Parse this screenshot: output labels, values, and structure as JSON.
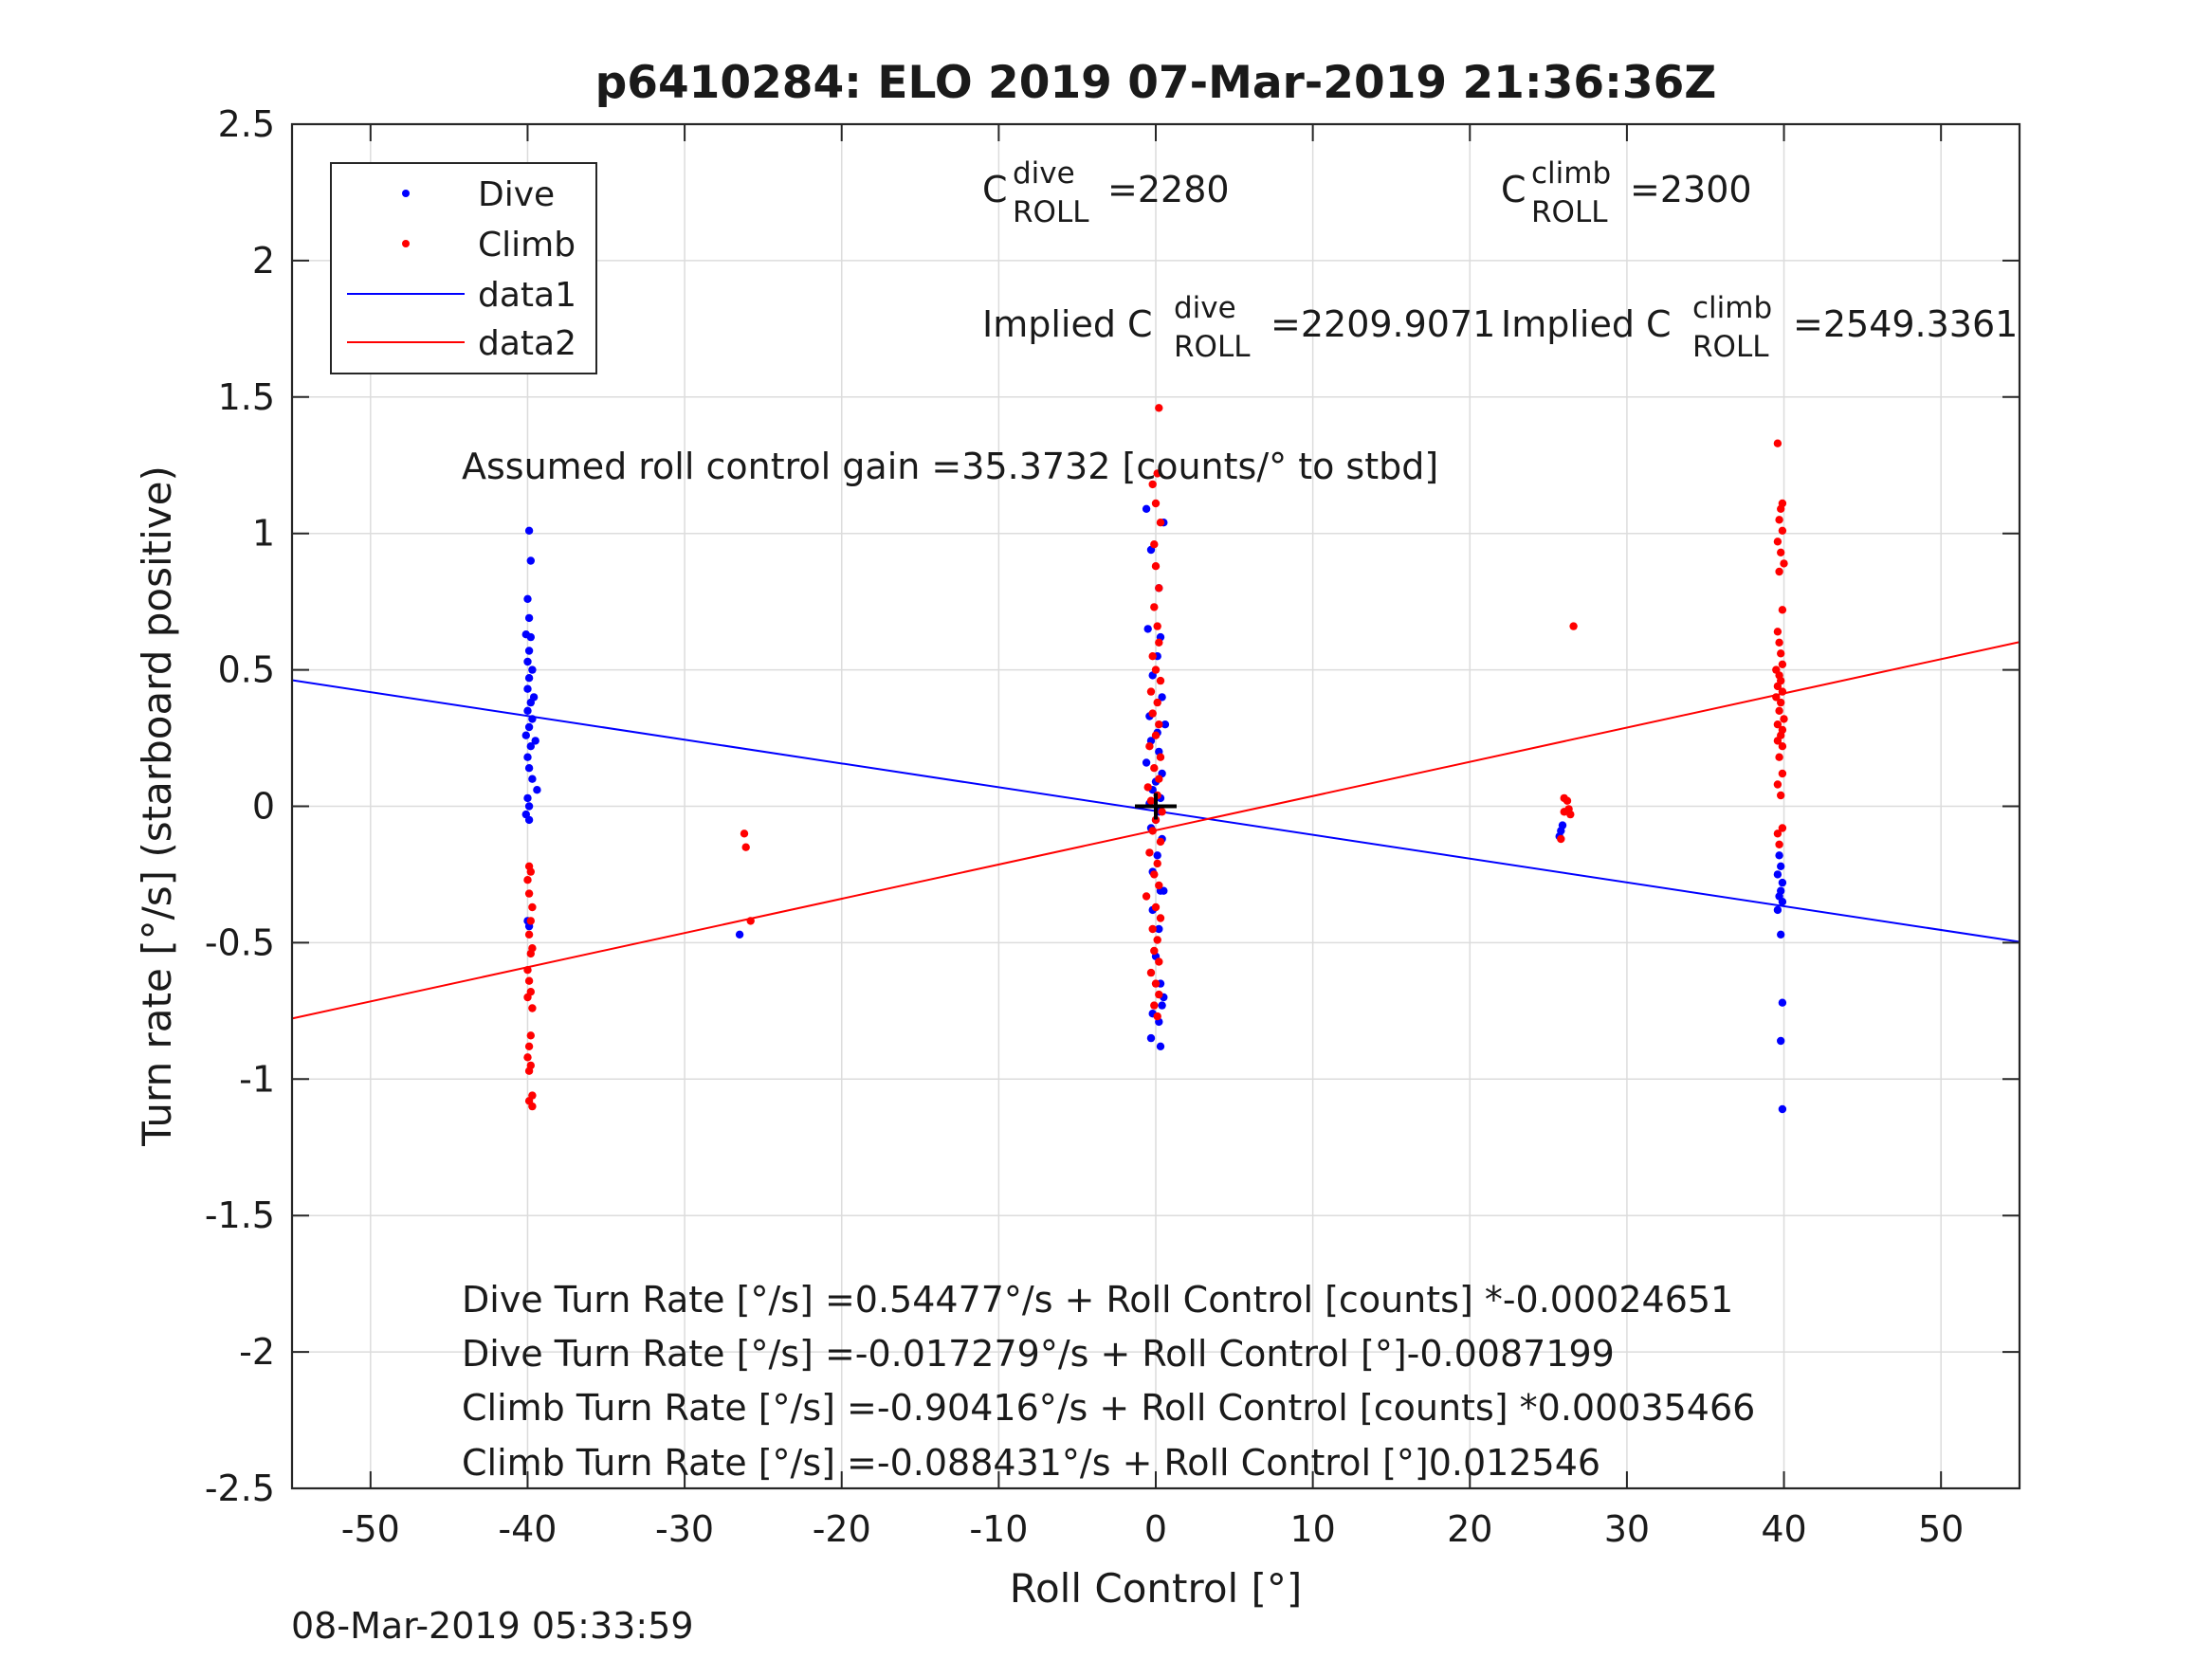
{
  "chart_data": {
    "type": "scatter",
    "title": "p6410284: ELO 2019 07-Mar-2019 21:36:36Z",
    "xlabel": "Roll Control [°]",
    "ylabel": "Turn rate [°/s] (starboard positive)",
    "xlim": [
      -55,
      55
    ],
    "ylim": [
      -2.5,
      2.5
    ],
    "grid": true,
    "x_ticks": [
      "-50",
      "-40",
      "-30",
      "-20",
      "-10",
      "0",
      "10",
      "20",
      "30",
      "40",
      "50"
    ],
    "y_ticks": [
      "2.5",
      "2",
      "1.5",
      "1",
      "0.5",
      "0",
      "-0.5",
      "-1",
      "-1.5",
      "-2",
      "-2.5"
    ],
    "legend": {
      "placement": "top-left",
      "entries": [
        "Dive",
        "Climb",
        "data1",
        "data2"
      ]
    },
    "colors": {
      "dive": "#0000ff",
      "climb": "#ff0000",
      "center_marker": "#000000"
    },
    "series": [
      {
        "name": "Dive",
        "style": "points",
        "points": [
          [
            -39.9,
            1.01
          ],
          [
            -39.8,
            0.9
          ],
          [
            -40.0,
            0.76
          ],
          [
            -39.9,
            0.69
          ],
          [
            -40.1,
            0.63
          ],
          [
            -39.8,
            0.62
          ],
          [
            -39.9,
            0.57
          ],
          [
            -40.0,
            0.53
          ],
          [
            -39.7,
            0.5
          ],
          [
            -39.9,
            0.47
          ],
          [
            -40.0,
            0.43
          ],
          [
            -39.6,
            0.4
          ],
          [
            -39.8,
            0.38
          ],
          [
            -40.0,
            0.35
          ],
          [
            -39.7,
            0.32
          ],
          [
            -39.9,
            0.29
          ],
          [
            -40.1,
            0.26
          ],
          [
            -39.5,
            0.24
          ],
          [
            -39.8,
            0.22
          ],
          [
            -40.0,
            0.18
          ],
          [
            -39.9,
            0.14
          ],
          [
            -39.7,
            0.1
          ],
          [
            -39.4,
            0.06
          ],
          [
            -40.0,
            0.03
          ],
          [
            -39.9,
            0.0
          ],
          [
            -40.1,
            -0.03
          ],
          [
            -39.9,
            -0.05
          ],
          [
            -40.0,
            -0.42
          ],
          [
            -39.9,
            -0.44
          ],
          [
            -26.5,
            -0.47
          ],
          [
            -0.6,
            1.09
          ],
          [
            0.5,
            1.04
          ],
          [
            -0.3,
            0.94
          ],
          [
            0.2,
            0.8
          ],
          [
            -0.5,
            0.65
          ],
          [
            0.3,
            0.62
          ],
          [
            0.1,
            0.55
          ],
          [
            -0.2,
            0.48
          ],
          [
            0.4,
            0.4
          ],
          [
            -0.4,
            0.33
          ],
          [
            0.6,
            0.3
          ],
          [
            0.1,
            0.27
          ],
          [
            -0.3,
            0.24
          ],
          [
            0.2,
            0.2
          ],
          [
            -0.6,
            0.16
          ],
          [
            0.4,
            0.12
          ],
          [
            0.0,
            0.09
          ],
          [
            -0.2,
            0.06
          ],
          [
            0.3,
            0.03
          ],
          [
            -0.4,
            0.01
          ],
          [
            0.2,
            -0.02
          ],
          [
            0.0,
            -0.05
          ],
          [
            -0.3,
            -0.08
          ],
          [
            0.4,
            -0.12
          ],
          [
            0.1,
            -0.18
          ],
          [
            -0.2,
            -0.24
          ],
          [
            0.3,
            -0.31
          ],
          [
            0.5,
            -0.31
          ],
          [
            -0.2,
            -0.38
          ],
          [
            0.2,
            -0.45
          ],
          [
            0.0,
            -0.55
          ],
          [
            0.3,
            -0.65
          ],
          [
            0.5,
            -0.7
          ],
          [
            0.4,
            -0.73
          ],
          [
            -0.2,
            -0.76
          ],
          [
            0.2,
            -0.79
          ],
          [
            -0.3,
            -0.85
          ],
          [
            0.3,
            -0.88
          ],
          [
            25.9,
            -0.07
          ],
          [
            25.8,
            -0.09
          ],
          [
            25.7,
            -0.11
          ],
          [
            39.7,
            -0.18
          ],
          [
            39.8,
            -0.22
          ],
          [
            39.6,
            -0.25
          ],
          [
            39.9,
            -0.28
          ],
          [
            39.8,
            -0.31
          ],
          [
            39.7,
            -0.33
          ],
          [
            39.9,
            -0.35
          ],
          [
            39.6,
            -0.38
          ],
          [
            39.8,
            -0.47
          ],
          [
            39.9,
            -0.72
          ],
          [
            39.8,
            -0.86
          ],
          [
            39.9,
            -1.11
          ]
        ]
      },
      {
        "name": "Climb",
        "style": "points",
        "points": [
          [
            -39.9,
            -0.22
          ],
          [
            -39.8,
            -0.24
          ],
          [
            -40.0,
            -0.27
          ],
          [
            -39.9,
            -0.32
          ],
          [
            -39.7,
            -0.37
          ],
          [
            -39.8,
            -0.42
          ],
          [
            -39.9,
            -0.47
          ],
          [
            -39.7,
            -0.52
          ],
          [
            -39.8,
            -0.54
          ],
          [
            -40.0,
            -0.6
          ],
          [
            -39.9,
            -0.64
          ],
          [
            -39.8,
            -0.68
          ],
          [
            -40.0,
            -0.7
          ],
          [
            -39.7,
            -0.74
          ],
          [
            -39.8,
            -0.84
          ],
          [
            -39.9,
            -0.88
          ],
          [
            -40.0,
            -0.92
          ],
          [
            -39.8,
            -0.95
          ],
          [
            -39.9,
            -0.97
          ],
          [
            -39.7,
            -1.06
          ],
          [
            -39.9,
            -1.08
          ],
          [
            -39.7,
            -1.1
          ],
          [
            -26.2,
            -0.1
          ],
          [
            -26.1,
            -0.15
          ],
          [
            -25.8,
            -0.42
          ],
          [
            0.2,
            1.46
          ],
          [
            0.1,
            1.22
          ],
          [
            -0.2,
            1.18
          ],
          [
            0.0,
            1.11
          ],
          [
            0.3,
            1.04
          ],
          [
            -0.1,
            0.96
          ],
          [
            0.0,
            0.88
          ],
          [
            0.2,
            0.8
          ],
          [
            -0.1,
            0.73
          ],
          [
            0.1,
            0.66
          ],
          [
            0.2,
            0.6
          ],
          [
            -0.2,
            0.55
          ],
          [
            0.0,
            0.5
          ],
          [
            0.3,
            0.46
          ],
          [
            -0.3,
            0.42
          ],
          [
            0.1,
            0.38
          ],
          [
            -0.2,
            0.34
          ],
          [
            0.2,
            0.3
          ],
          [
            0.0,
            0.26
          ],
          [
            -0.4,
            0.22
          ],
          [
            0.3,
            0.18
          ],
          [
            -0.1,
            0.14
          ],
          [
            0.2,
            0.1
          ],
          [
            -0.5,
            0.07
          ],
          [
            0.1,
            0.04
          ],
          [
            -0.3,
            0.02
          ],
          [
            0.4,
            -0.02
          ],
          [
            0.0,
            -0.05
          ],
          [
            -0.2,
            -0.09
          ],
          [
            0.3,
            -0.13
          ],
          [
            -0.4,
            -0.17
          ],
          [
            0.1,
            -0.21
          ],
          [
            -0.1,
            -0.25
          ],
          [
            0.2,
            -0.29
          ],
          [
            -0.6,
            -0.33
          ],
          [
            0.0,
            -0.37
          ],
          [
            0.3,
            -0.41
          ],
          [
            -0.2,
            -0.45
          ],
          [
            0.1,
            -0.49
          ],
          [
            -0.1,
            -0.53
          ],
          [
            0.2,
            -0.57
          ],
          [
            -0.3,
            -0.61
          ],
          [
            0.0,
            -0.65
          ],
          [
            0.2,
            -0.69
          ],
          [
            -0.1,
            -0.73
          ],
          [
            0.1,
            -0.77
          ],
          [
            26.0,
            0.03
          ],
          [
            26.2,
            0.02
          ],
          [
            26.3,
            -0.01
          ],
          [
            26.0,
            -0.02
          ],
          [
            26.4,
            -0.03
          ],
          [
            25.8,
            -0.12
          ],
          [
            26.6,
            0.66
          ],
          [
            39.6,
            1.33
          ],
          [
            39.9,
            1.11
          ],
          [
            39.8,
            1.09
          ],
          [
            39.7,
            1.05
          ],
          [
            39.9,
            1.01
          ],
          [
            39.6,
            0.97
          ],
          [
            39.8,
            0.93
          ],
          [
            40.0,
            0.89
          ],
          [
            39.7,
            0.86
          ],
          [
            39.9,
            0.72
          ],
          [
            39.6,
            0.64
          ],
          [
            39.7,
            0.6
          ],
          [
            39.8,
            0.56
          ],
          [
            39.9,
            0.52
          ],
          [
            39.5,
            0.5
          ],
          [
            39.7,
            0.48
          ],
          [
            39.8,
            0.46
          ],
          [
            39.6,
            0.44
          ],
          [
            39.9,
            0.42
          ],
          [
            39.5,
            0.4
          ],
          [
            39.8,
            0.38
          ],
          [
            39.7,
            0.35
          ],
          [
            40.0,
            0.32
          ],
          [
            39.6,
            0.3
          ],
          [
            39.9,
            0.28
          ],
          [
            39.8,
            0.26
          ],
          [
            39.6,
            0.24
          ],
          [
            39.9,
            0.22
          ],
          [
            39.7,
            0.18
          ],
          [
            39.9,
            0.12
          ],
          [
            39.6,
            0.08
          ],
          [
            39.8,
            0.04
          ],
          [
            39.9,
            -0.08
          ],
          [
            39.6,
            -0.1
          ],
          [
            39.7,
            -0.14
          ]
        ]
      },
      {
        "name": "data1",
        "style": "line",
        "x": [
          -55,
          55
        ],
        "y": [
          0.462,
          -0.497
        ]
      },
      {
        "name": "data2",
        "style": "line",
        "x": [
          -55,
          55
        ],
        "y": [
          -0.778,
          0.602
        ]
      }
    ],
    "center_marker": {
      "x": 0,
      "y": 0
    }
  },
  "annotations": {
    "c_roll_dive_label": "C",
    "c_roll_dive_sup": "dive",
    "c_roll_dive_sub": "ROLL",
    "c_roll_dive_value": "=2280",
    "c_roll_climb_label": "C",
    "c_roll_climb_sup": "climb",
    "c_roll_climb_sub": "ROLL",
    "c_roll_climb_value": "=2300",
    "implied_dive_label": "Implied C",
    "implied_dive_sup": "dive",
    "implied_dive_sub": "ROLL",
    "implied_dive_value": "=2209.9071",
    "implied_climb_label": "Implied C",
    "implied_climb_sup": "climb",
    "implied_climb_sub": "ROLL",
    "implied_climb_value": "=2549.3361",
    "gain": "Assumed roll control gain =35.3732 [counts/° to stbd]",
    "eq1": "Dive Turn Rate [°/s] =0.54477°/s + Roll Control [counts] *-0.00024651",
    "eq2": "Dive Turn Rate [°/s] =-0.017279°/s + Roll Control [°]-0.0087199",
    "eq3": "Climb Turn Rate [°/s] =-0.90416°/s + Roll Control [counts] *0.00035466",
    "eq4": "Climb Turn Rate [°/s] =-0.088431°/s + Roll Control [°]0.012546"
  },
  "footer": {
    "timestamp": "08-Mar-2019 05:33:59"
  }
}
